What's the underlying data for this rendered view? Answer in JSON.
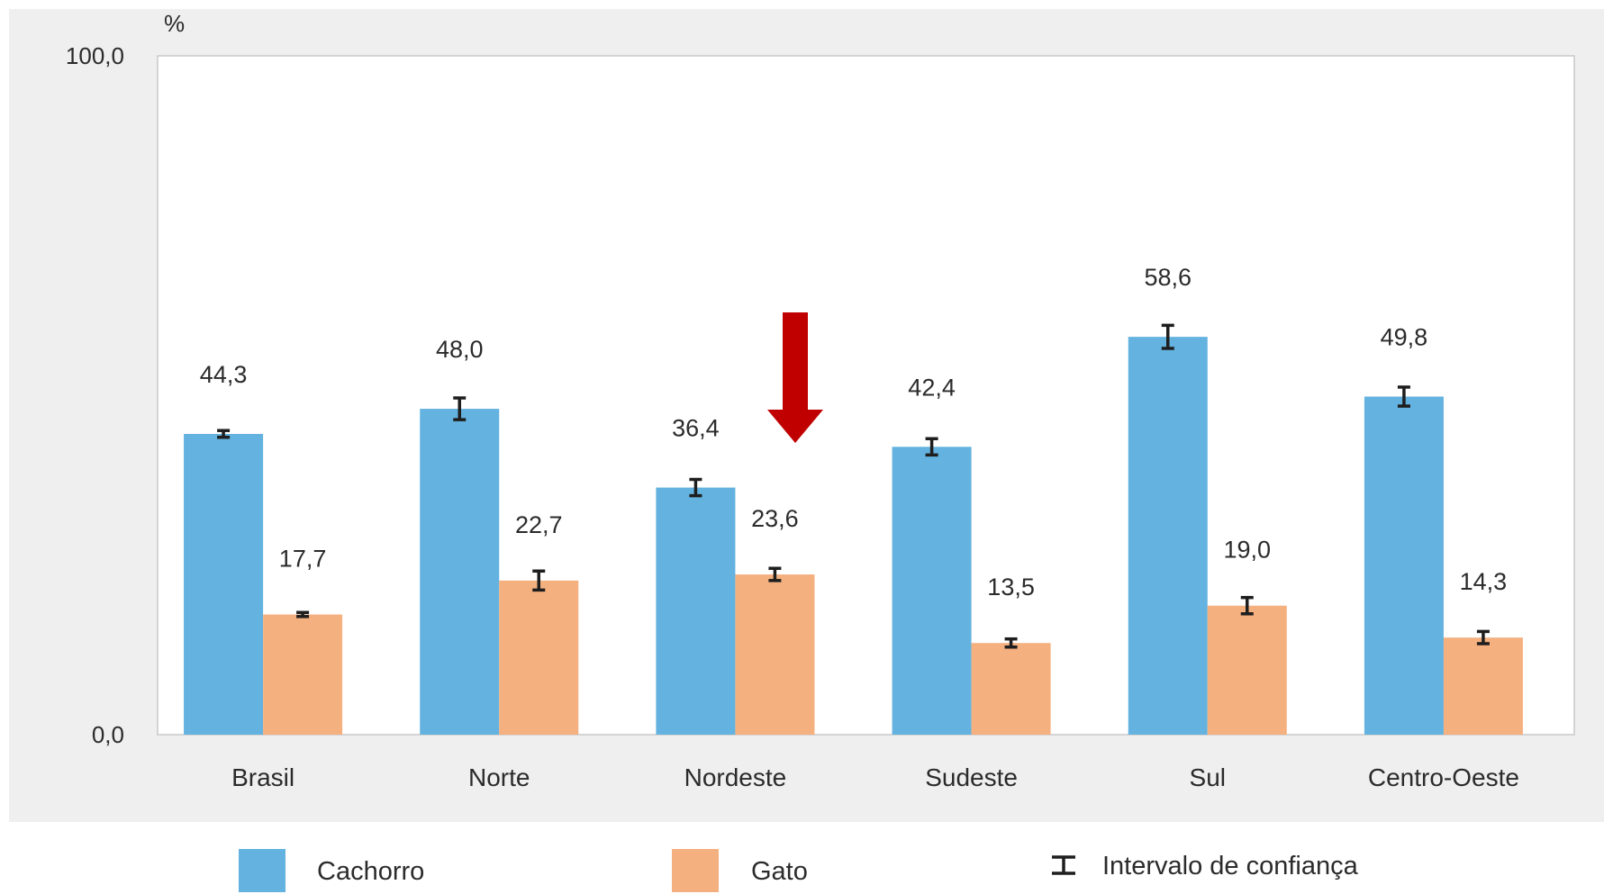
{
  "colors": {
    "background_panel": "#efefef",
    "plot_background": "#ffffff",
    "Cachorro": "#63b2df",
    "Gato": "#f5b07f",
    "error_bar": "#1e1e1e",
    "arrow": "#c00000"
  },
  "chart_data": {
    "type": "bar",
    "unit_label": "%",
    "ylim": [
      0,
      100
    ],
    "y_tick_labels": [
      "0,0",
      "100,0"
    ],
    "y_ticks": [
      0,
      100
    ],
    "categories": [
      "Brasil",
      "Norte",
      "Nordeste",
      "Sudeste",
      "Sul",
      "Centro-Oeste"
    ],
    "series": [
      {
        "name": "Cachorro",
        "values": [
          44.3,
          48.0,
          36.4,
          42.4,
          58.6,
          49.8
        ],
        "labels": [
          "44,3",
          "48,0",
          "36,4",
          "42,4",
          "58,6",
          "49,8"
        ],
        "ci_lower": [
          43.8,
          46.4,
          35.2,
          41.2,
          56.9,
          48.4
        ],
        "ci_upper": [
          44.8,
          49.6,
          37.6,
          43.6,
          60.3,
          51.2
        ]
      },
      {
        "name": "Gato",
        "values": [
          17.7,
          22.7,
          23.6,
          13.5,
          19.0,
          14.3
        ],
        "labels": [
          "17,7",
          "22,7",
          "23,6",
          "13,5",
          "19,0",
          "14,3"
        ],
        "ci_lower": [
          17.4,
          21.3,
          22.7,
          12.9,
          17.8,
          13.4
        ],
        "ci_upper": [
          18.0,
          24.1,
          24.5,
          14.1,
          20.2,
          15.2
        ]
      }
    ],
    "grid": false,
    "legend": {
      "placement": "bottom",
      "entries": [
        "Cachorro",
        "Gato"
      ],
      "confidence_label": "Intervalo de confiança"
    },
    "annotation": {
      "type": "arrow",
      "pointing_down_at": "Nordeste - Gato"
    }
  }
}
